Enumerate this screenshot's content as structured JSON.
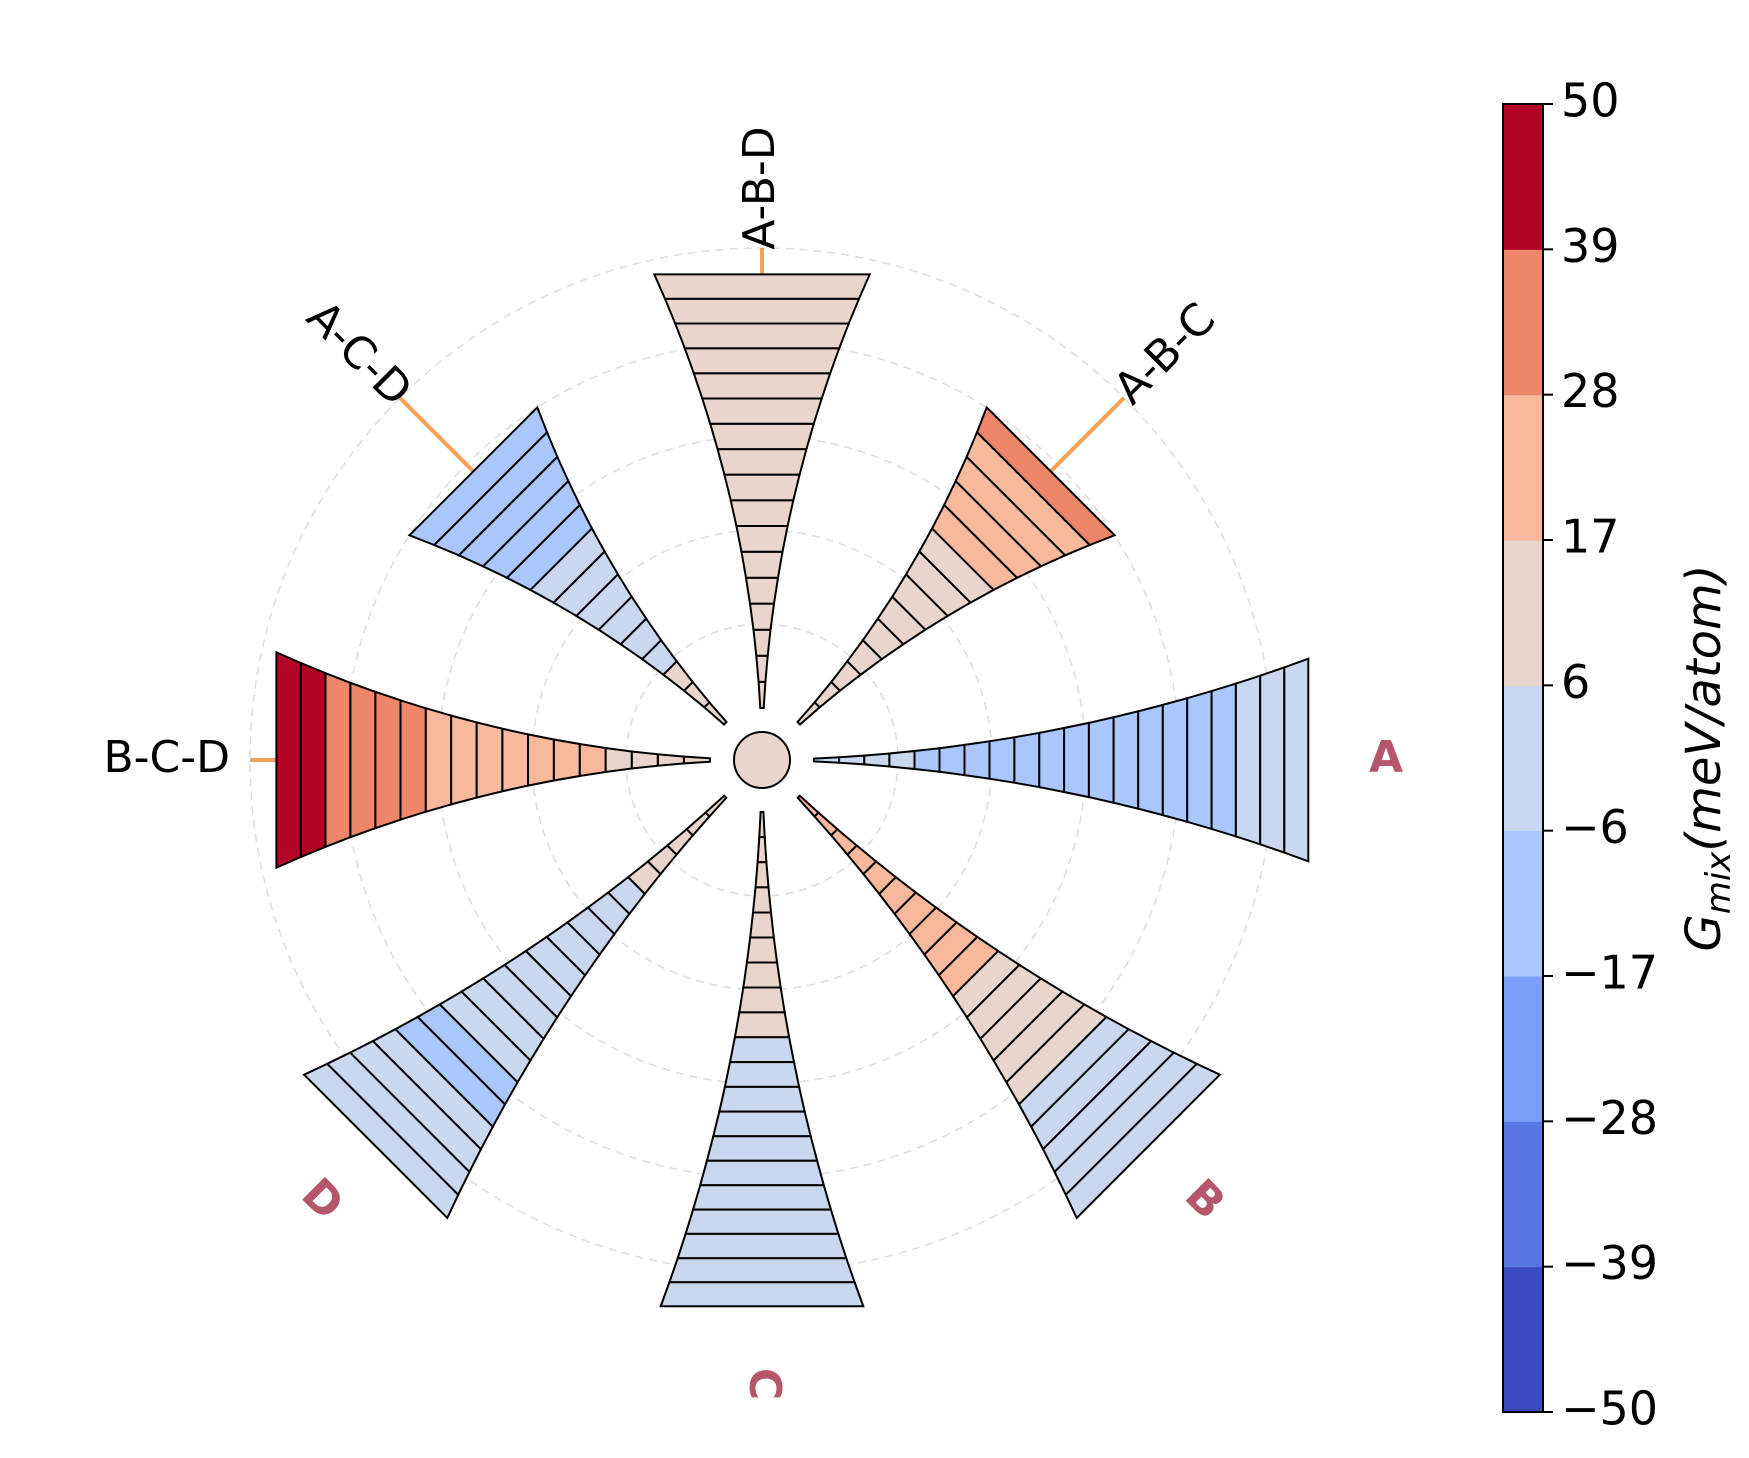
{
  "chart_data": {
    "type": "polar-bar",
    "description_units": "G_mix in meV/atom",
    "center": {
      "value": 10
    },
    "colorbar": {
      "title_main": "G",
      "title_sub": "mix",
      "title_units": "(meV/atom)",
      "range": [
        -50,
        50
      ],
      "boundaries": [
        -50,
        -39,
        -28,
        -17,
        -6,
        6,
        17,
        28,
        39,
        50
      ],
      "tick_labels": [
        "−50",
        "−39",
        "−28",
        "−17",
        "−6",
        "6",
        "17",
        "28",
        "39",
        "50"
      ],
      "colors": [
        "#3b4cc0",
        "#5977e3",
        "#7b9ff9",
        "#aac7fd",
        "#cad8ef",
        "#e9d5cb",
        "#f7b89c",
        "#ee8669",
        "#b40426"
      ]
    },
    "rings": [
      1,
      2,
      3,
      4,
      5
    ],
    "spokes": [
      {
        "name": "A",
        "kind": "element",
        "angle_deg": 0,
        "length": 1.2,
        "values": [
          2,
          1,
          -1,
          -3,
          -8,
          -9,
          -10,
          -10,
          -10,
          -11,
          -11,
          -12,
          -12,
          -12,
          -12,
          -10,
          -8,
          -5,
          -3,
          0
        ]
      },
      {
        "name": "B",
        "kind": "element",
        "angle_deg": 315,
        "length": 1.2,
        "values": [
          22,
          23,
          24,
          25,
          25,
          24,
          24,
          23,
          22,
          20,
          16,
          12,
          10,
          8,
          6,
          4,
          2,
          1,
          0,
          -1
        ]
      },
      {
        "name": "C",
        "kind": "element",
        "angle_deg": 270,
        "length": 1.2,
        "values": [
          12,
          12,
          12,
          12,
          11,
          11,
          10,
          10,
          9,
          5,
          2,
          0,
          -1,
          -2,
          -2,
          -3,
          -3,
          -3,
          -3,
          -3
        ]
      },
      {
        "name": "D",
        "kind": "element",
        "angle_deg": 225,
        "length": 1.2,
        "values": [
          10,
          10,
          9,
          9,
          8,
          2,
          0,
          -1,
          -2,
          -3,
          -3,
          -4,
          -4,
          -5,
          -8,
          -12,
          -4,
          -2,
          -1,
          0
        ]
      },
      {
        "name": "B-C-D",
        "kind": "ternary",
        "angle_deg": 180,
        "length": 1.25,
        "values": [
          10,
          12,
          14,
          16,
          18,
          20,
          22,
          23,
          24,
          25,
          27,
          28,
          30,
          33,
          36,
          40,
          45
        ]
      },
      {
        "name": "A-C-D",
        "kind": "ternary",
        "angle_deg": 135,
        "length": 1.25,
        "values": [
          12,
          10,
          8,
          5,
          2,
          0,
          -2,
          -4,
          -6,
          -10,
          -12,
          -11,
          -9,
          -8
        ]
      },
      {
        "name": "A-B-D",
        "kind": "ternary",
        "angle_deg": 90,
        "length": 1.25,
        "values": [
          12,
          12,
          12,
          13,
          13,
          13,
          13,
          13,
          13,
          13,
          13,
          13,
          13,
          14,
          14,
          14,
          14
        ]
      },
      {
        "name": "A-B-C",
        "kind": "ternary",
        "angle_deg": 45,
        "length": 1.25,
        "values": [
          12,
          12,
          12,
          13,
          13,
          14,
          14,
          15,
          16,
          17,
          18,
          22,
          25,
          28
        ]
      }
    ]
  }
}
